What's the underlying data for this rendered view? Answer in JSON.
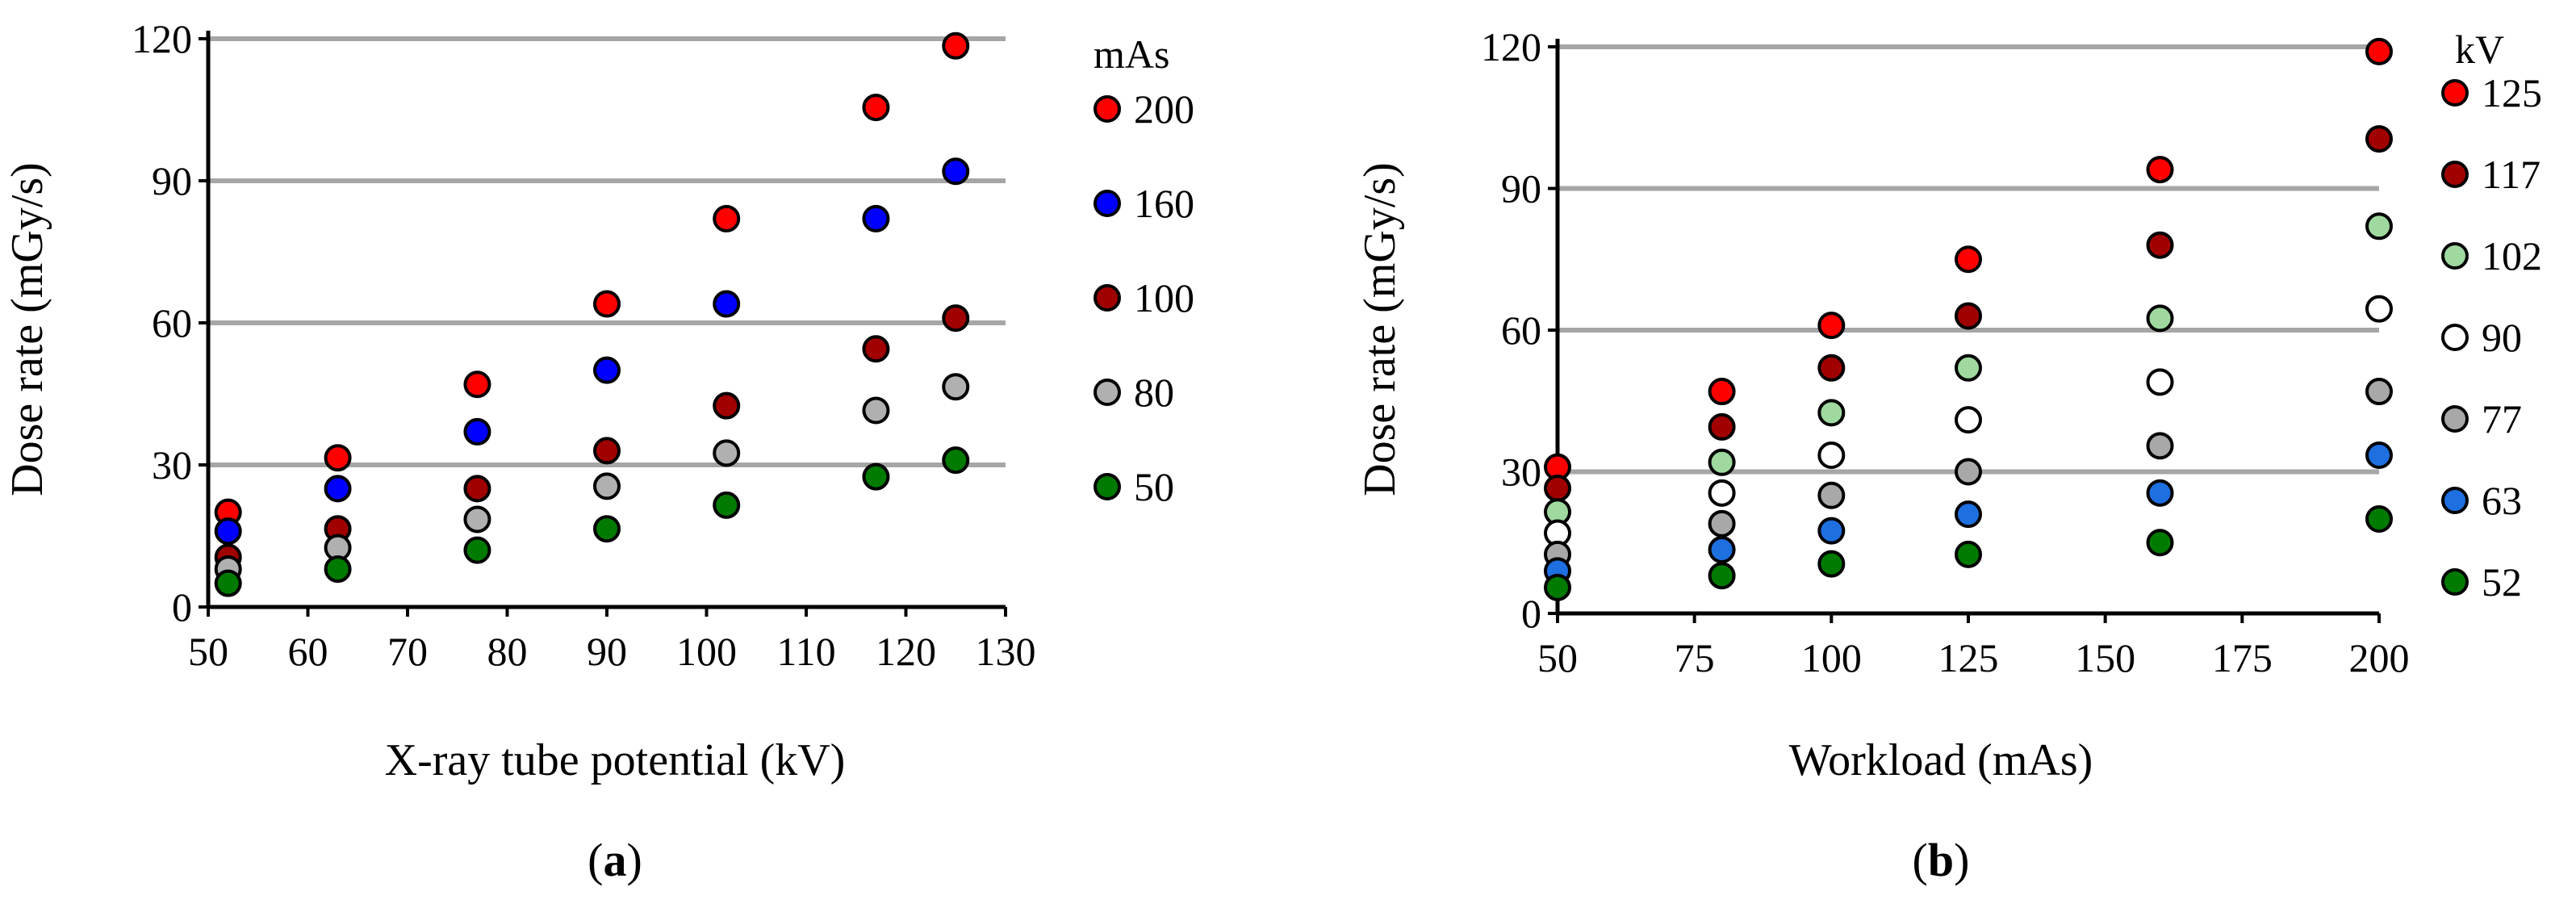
{
  "chart_data": [
    {
      "id": "a",
      "type": "scatter",
      "caption": {
        "open": "(",
        "letter": "a",
        "close": ")"
      },
      "xlabel": "X-ray tube potential (kV)",
      "ylabel": "Dose rate (mGy/s)",
      "xlim": [
        50,
        130
      ],
      "ylim": [
        0,
        120
      ],
      "xticks": [
        50,
        60,
        70,
        80,
        90,
        100,
        110,
        120,
        130
      ],
      "yticks": [
        0,
        30,
        60,
        90,
        120
      ],
      "grid": "horizontal",
      "legend_title": "mAs",
      "x": [
        52,
        63,
        77,
        90,
        102,
        117,
        125
      ],
      "series": [
        {
          "name": "200",
          "color": "#ff0000",
          "values": [
            20,
            31.5,
            47,
            64,
            82,
            105.5,
            118.5
          ]
        },
        {
          "name": "160",
          "color": "#0000ff",
          "values": [
            16,
            25,
            37,
            50,
            64,
            82,
            92
          ]
        },
        {
          "name": "100",
          "color": "#a00000",
          "values": [
            10.5,
            16.5,
            25,
            33,
            42.5,
            54.5,
            61
          ]
        },
        {
          "name": "80",
          "color": "#b0b0b0",
          "values": [
            8,
            12.5,
            18.5,
            25.5,
            32.5,
            41.5,
            46.5
          ]
        },
        {
          "name": "50",
          "color": "#007a00",
          "values": [
            5,
            8,
            12,
            16.5,
            21.5,
            27.5,
            31
          ]
        }
      ]
    },
    {
      "id": "b",
      "type": "scatter",
      "caption": {
        "open": "(",
        "letter": "b",
        "close": ")"
      },
      "xlabel": "Workload (mAs)",
      "ylabel": "Dose rate (mGy/s)",
      "xlim": [
        50,
        200
      ],
      "ylim": [
        0,
        120
      ],
      "xticks": [
        50,
        75,
        100,
        125,
        150,
        175,
        200
      ],
      "yticks": [
        0,
        30,
        60,
        90,
        120
      ],
      "grid": "horizontal",
      "legend_title": "kV",
      "x": [
        50,
        80,
        100,
        125,
        160,
        200
      ],
      "series": [
        {
          "name": "125",
          "color": "#ff0000",
          "values": [
            31,
            47,
            61,
            75,
            94,
            119
          ]
        },
        {
          "name": "117",
          "color": "#a00000",
          "values": [
            26.5,
            39.5,
            52,
            63,
            78,
            100.5
          ]
        },
        {
          "name": "102",
          "color": "#9fd99f",
          "values": [
            21.5,
            32,
            42.5,
            52,
            62.5,
            82
          ]
        },
        {
          "name": "90",
          "color": "#ffffff",
          "values": [
            17,
            25.5,
            33.5,
            41,
            49,
            64.5
          ]
        },
        {
          "name": "77",
          "color": "#a8a8a8",
          "values": [
            12.5,
            19,
            25,
            30,
            35.5,
            47
          ]
        },
        {
          "name": "63",
          "color": "#1e6fe0",
          "values": [
            9,
            13.5,
            17.5,
            21,
            25.5,
            33.5
          ]
        },
        {
          "name": "52",
          "color": "#007a00",
          "values": [
            5.5,
            8,
            10.5,
            12.5,
            15,
            20
          ]
        }
      ]
    }
  ]
}
